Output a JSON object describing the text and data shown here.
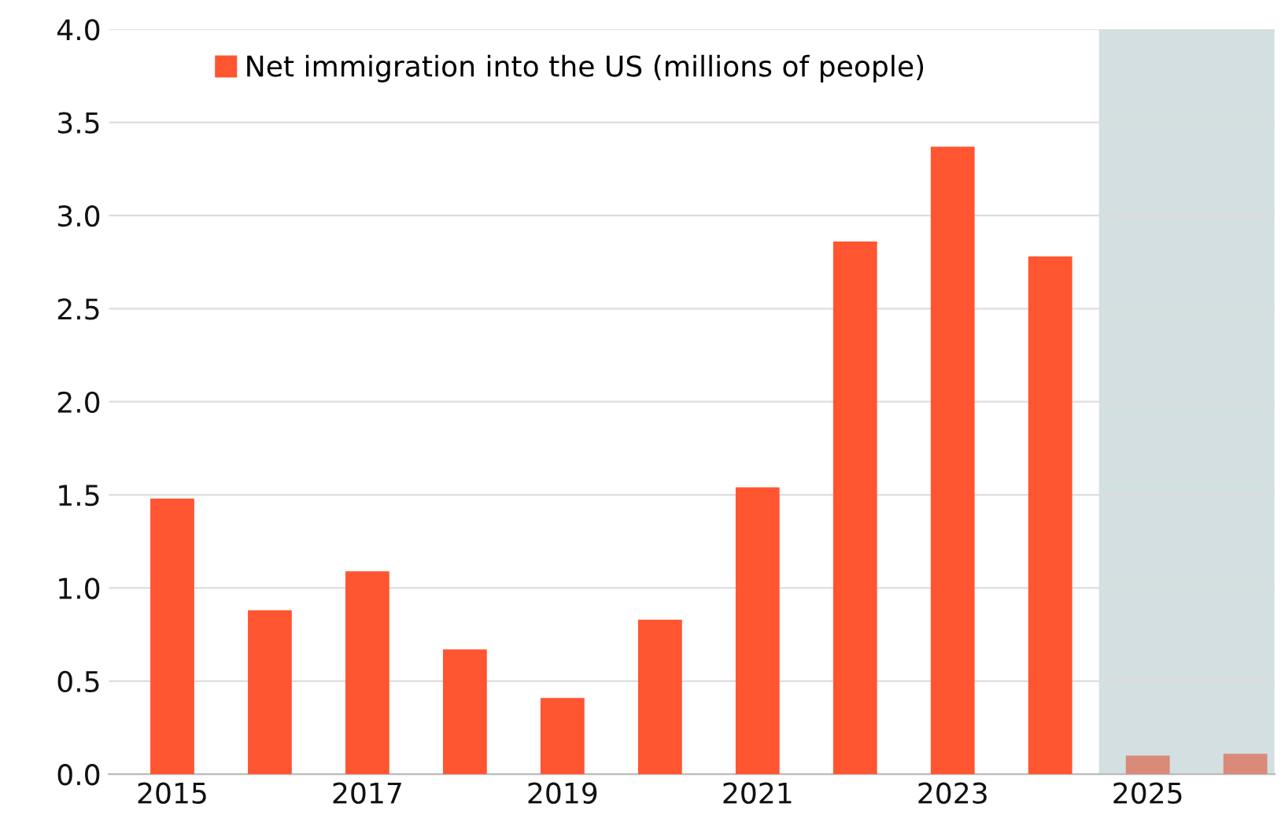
{
  "chart_data": {
    "type": "bar",
    "x": [
      2015,
      2016,
      2017,
      2018,
      2019,
      2020,
      2021,
      2022,
      2023,
      2024,
      2025,
      2026
    ],
    "series": [
      {
        "name": "Net immigration into the US (millions of people)",
        "color": "#ff5530",
        "colors": [
          "#ff5530",
          "#ff5530",
          "#ff5530",
          "#ff5530",
          "#ff5530",
          "#ff5530",
          "#ff5530",
          "#ff5530",
          "#ff5530",
          "#ff5530",
          "#d98a78",
          "#d98a78"
        ],
        "values": [
          1.48,
          0.88,
          1.09,
          0.67,
          0.41,
          0.83,
          1.54,
          2.86,
          3.37,
          2.78,
          0.1,
          0.11
        ]
      }
    ],
    "xlim": [
      2014.35,
      2026.3
    ],
    "xticks": [
      2015,
      2017,
      2019,
      2021,
      2023,
      2025
    ],
    "ylim": [
      0,
      4.0
    ],
    "yticks": [
      {
        "value": 0,
        "label": "0.0"
      },
      0.5,
      {
        "value": 1,
        "label": "1.0"
      },
      1.5,
      {
        "value": 2,
        "label": "2.0"
      },
      2.5,
      {
        "value": 3,
        "label": "3.0"
      },
      3.5,
      {
        "value": 4,
        "label": "4.0"
      }
    ],
    "bands": [
      {
        "axis": "x",
        "from": 2024.5,
        "to": 2026.3,
        "color": "#d3dfe0"
      }
    ],
    "grid": "y",
    "legend": "top left"
  }
}
